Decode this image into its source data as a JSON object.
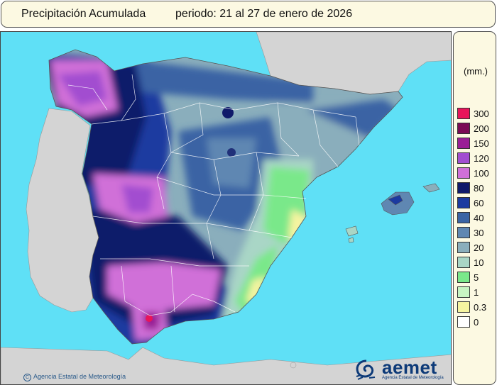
{
  "title": {
    "name": "Precipitación Acumulada",
    "period": "periodo: 21 al 27 de enero de 2026"
  },
  "legend": {
    "unit": "(mm.)",
    "classes": [
      {
        "label": "300",
        "color": "#e8145a"
      },
      {
        "label": "200",
        "color": "#7a0a55"
      },
      {
        "label": "150",
        "color": "#9a1e96"
      },
      {
        "label": "120",
        "color": "#a24ed0"
      },
      {
        "label": "100",
        "color": "#d070d8"
      },
      {
        "label": "80",
        "color": "#101a6a"
      },
      {
        "label": "60",
        "color": "#1c3aa0"
      },
      {
        "label": "40",
        "color": "#3a64a4"
      },
      {
        "label": "30",
        "color": "#5f87b2"
      },
      {
        "label": "20",
        "color": "#8aaebc"
      },
      {
        "label": "10",
        "color": "#a9d6c6"
      },
      {
        "label": "5",
        "color": "#7ae88a"
      },
      {
        "label": "1",
        "color": "#c8f4c2"
      },
      {
        "label": "0.3",
        "color": "#f6f4a0"
      },
      {
        "label": "0",
        "color": "#ffffff"
      }
    ]
  },
  "map": {
    "sea_color": "#5fe0f6",
    "foreign_land_color": "#d4d4d4"
  },
  "footer": {
    "credit": "Agencia Estatal de Meteorología",
    "logo_word": "aemet",
    "logo_sub": "Agencia Estatal de Meteorología"
  }
}
